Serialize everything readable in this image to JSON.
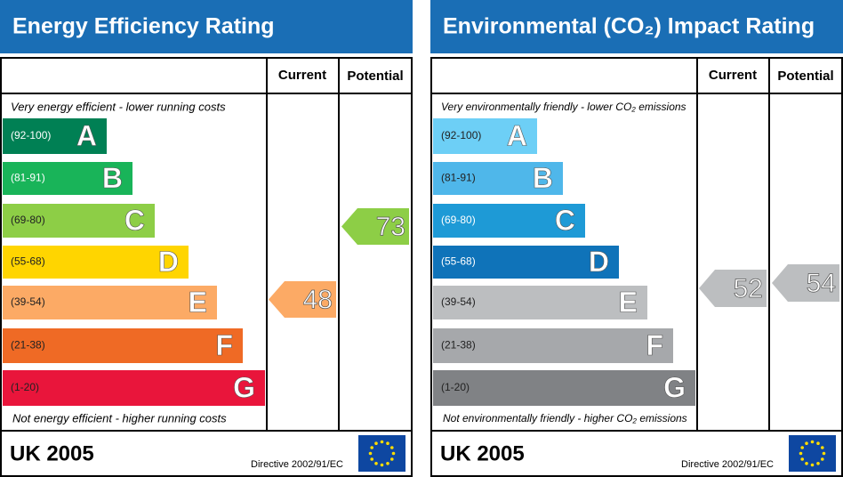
{
  "panels": [
    {
      "title": "Energy Efficiency Rating",
      "current_header": "Current",
      "potential_header": "Potential",
      "top_caption": "Very energy efficient - lower running costs",
      "bottom_caption": "Not energy efficient - higher running costs",
      "bands": [
        {
          "range": "(92-100)",
          "letter": "A",
          "color": "#008054"
        },
        {
          "range": "(81-91)",
          "letter": "B",
          "color": "#19b459"
        },
        {
          "range": "(69-80)",
          "letter": "C",
          "color": "#8dce46"
        },
        {
          "range": "(55-68)",
          "letter": "D",
          "color": "#ffd500"
        },
        {
          "range": "(39-54)",
          "letter": "E",
          "color": "#fcaa65"
        },
        {
          "range": "(21-38)",
          "letter": "F",
          "color": "#ef6a25"
        },
        {
          "range": "(1-20)",
          "letter": "G",
          "color": "#e9153b"
        }
      ],
      "current": "48",
      "current_color": "#fcaa65",
      "potential": "73",
      "potential_color": "#8dce46",
      "country": "UK 2005",
      "directive": "Directive 2002/91/EC"
    },
    {
      "title": "Environmental (CO₂) Impact Rating",
      "current_header": "Current",
      "potential_header": "Potential",
      "top_caption": "Very environmentally friendly - lower CO₂ emissions",
      "bottom_caption": "Not environmentally friendly - higher CO₂ emissions",
      "bands": [
        {
          "range": "(92-100)",
          "letter": "A",
          "color": "#6dcff6"
        },
        {
          "range": "(81-91)",
          "letter": "B",
          "color": "#4fb7ea"
        },
        {
          "range": "(69-80)",
          "letter": "C",
          "color": "#1e9ad6"
        },
        {
          "range": "(55-68)",
          "letter": "D",
          "color": "#0f73b9"
        },
        {
          "range": "(39-54)",
          "letter": "E",
          "color": "#bcbec0"
        },
        {
          "range": "(21-38)",
          "letter": "F",
          "color": "#a6a8ab"
        },
        {
          "range": "(1-20)",
          "letter": "G",
          "color": "#808285"
        }
      ],
      "current": "52",
      "current_color": "#bcbec0",
      "potential": "54",
      "potential_color": "#bcbec0",
      "country": "UK 2005",
      "directive": "Directive 2002/91/EC"
    }
  ]
}
